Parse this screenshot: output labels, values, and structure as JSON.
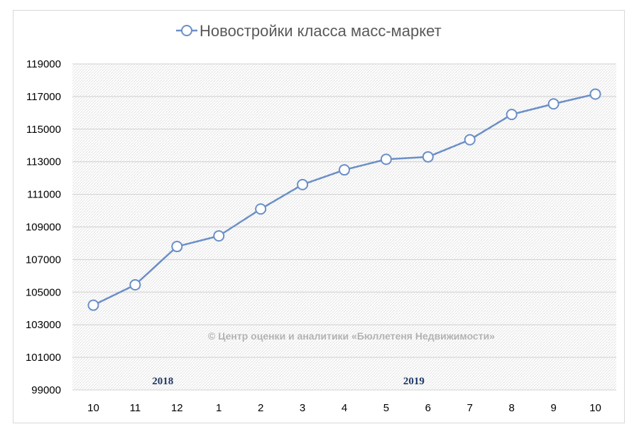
{
  "chart_data": {
    "type": "line",
    "title": "Новостройки класса масс-маркет",
    "legend": {
      "placement": "top",
      "series_name": "Новостройки класса масс-маркет"
    },
    "x": [
      "10",
      "11",
      "12",
      "1",
      "2",
      "3",
      "4",
      "5",
      "6",
      "7",
      "8",
      "9",
      "10"
    ],
    "year_labels": [
      {
        "text": "2018",
        "category_index": 2
      },
      {
        "text": "2019",
        "category_index": 8
      }
    ],
    "series": [
      {
        "name": "Новостройки класса масс-маркет",
        "color": "#6b8fc7",
        "values": [
          104200,
          105450,
          107800,
          108450,
          110100,
          111600,
          112500,
          113150,
          113300,
          114350,
          115900,
          116550,
          117150
        ]
      }
    ],
    "ylim": [
      99000,
      119000
    ],
    "yticks": [
      99000,
      101000,
      103000,
      105000,
      107000,
      109000,
      111000,
      113000,
      115000,
      117000,
      119000
    ],
    "grid": true,
    "watermark": "© Центр оценки и аналитики «Бюллетеня Недвижимости»"
  }
}
